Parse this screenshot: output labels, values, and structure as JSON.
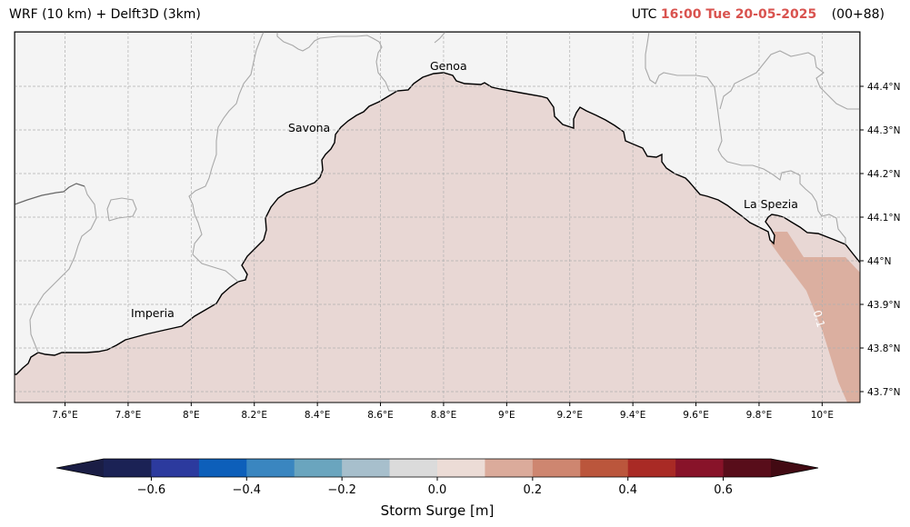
{
  "title_left": "WRF (10 km) + Delft3D (3km)",
  "title_right": {
    "prefix": "UTC",
    "time": "16:00 Tue 20-05-2025",
    "lead": "(00+88)"
  },
  "map": {
    "lon_range": [
      7.44,
      10.12
    ],
    "lat_range": [
      43.675,
      44.525
    ],
    "lon_ticks": [
      "7.6°E",
      "7.8°E",
      "8°E",
      "8.2°E",
      "8.4°E",
      "8.6°E",
      "8.8°E",
      "9°E",
      "9.2°E",
      "9.4°E",
      "9.6°E",
      "9.8°E",
      "10°E"
    ],
    "lat_ticks": [
      "43.7°N",
      "43.8°N",
      "43.9°N",
      "44°N",
      "44.1°N",
      "44.2°N",
      "44.3°N",
      "44.4°N"
    ],
    "cities": [
      {
        "name": "Genoa"
      },
      {
        "name": "Savona"
      },
      {
        "name": "Imperia"
      },
      {
        "name": "La Spezia"
      }
    ],
    "contour_label": "0.1",
    "colors": {
      "land": "#f4f4f4",
      "sea_low": "#e8d7d4",
      "sea_high": "#dbafa0",
      "grid": "#b0b0b0"
    }
  },
  "colorbar": {
    "label": "Storm Surge [m]",
    "ticks": [
      "−0.6",
      "−0.4",
      "−0.2",
      "0.0",
      "0.2",
      "0.4",
      "0.6"
    ],
    "tick_values": [
      -0.6,
      -0.4,
      -0.2,
      0.0,
      0.2,
      0.4,
      0.6
    ],
    "range": [
      -0.7,
      0.7
    ],
    "colors": [
      "#1b2255",
      "#2c3a9e",
      "#0d5fba",
      "#3a86c0",
      "#6aa5be",
      "#a7bfcc",
      "#dbdbdb",
      "#ecdcd6",
      "#dbab9b",
      "#ce8670",
      "#bb563c",
      "#a92a25",
      "#881329",
      "#580d1a"
    ],
    "under_color": "#1a1d45",
    "over_color": "#420a13"
  }
}
